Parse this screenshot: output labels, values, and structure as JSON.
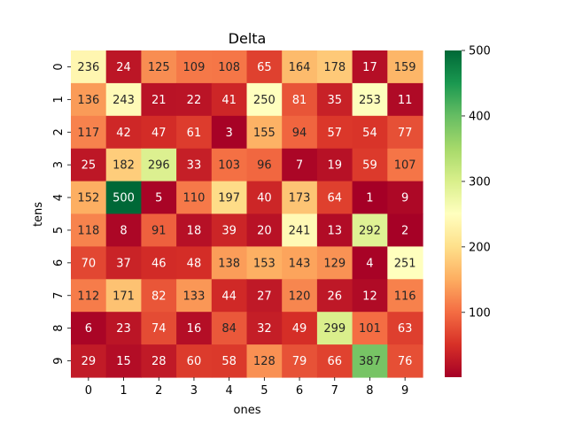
{
  "chart_data": {
    "type": "heatmap",
    "title": "Delta",
    "xlabel": "ones",
    "ylabel": "tens",
    "x_categories": [
      "0",
      "1",
      "2",
      "3",
      "4",
      "5",
      "6",
      "7",
      "8",
      "9"
    ],
    "y_categories": [
      "0",
      "1",
      "2",
      "3",
      "4",
      "5",
      "6",
      "7",
      "8",
      "9"
    ],
    "values": [
      [
        236,
        24,
        125,
        109,
        108,
        65,
        164,
        178,
        17,
        159
      ],
      [
        136,
        243,
        21,
        22,
        41,
        250,
        81,
        35,
        253,
        11
      ],
      [
        117,
        42,
        47,
        61,
        3,
        155,
        94,
        57,
        54,
        77
      ],
      [
        25,
        182,
        296,
        33,
        103,
        96,
        7,
        19,
        59,
        107
      ],
      [
        152,
        500,
        5,
        110,
        197,
        40,
        173,
        64,
        1,
        9
      ],
      [
        118,
        8,
        91,
        18,
        39,
        20,
        241,
        13,
        292,
        2
      ],
      [
        70,
        37,
        46,
        48,
        138,
        153,
        143,
        129,
        4,
        251
      ],
      [
        112,
        171,
        82,
        133,
        44,
        27,
        120,
        26,
        12,
        116
      ],
      [
        6,
        23,
        74,
        16,
        84,
        32,
        49,
        299,
        101,
        63
      ],
      [
        29,
        15,
        28,
        60,
        58,
        128,
        79,
        66,
        387,
        76
      ]
    ],
    "colormap": "RdYlGn",
    "colorbar": {
      "min": 1,
      "max": 500,
      "ticks": [
        "100",
        "200",
        "300",
        "400",
        "500"
      ],
      "tick_values": [
        100,
        200,
        300,
        400,
        500
      ]
    },
    "annotated": true,
    "grid": false
  }
}
